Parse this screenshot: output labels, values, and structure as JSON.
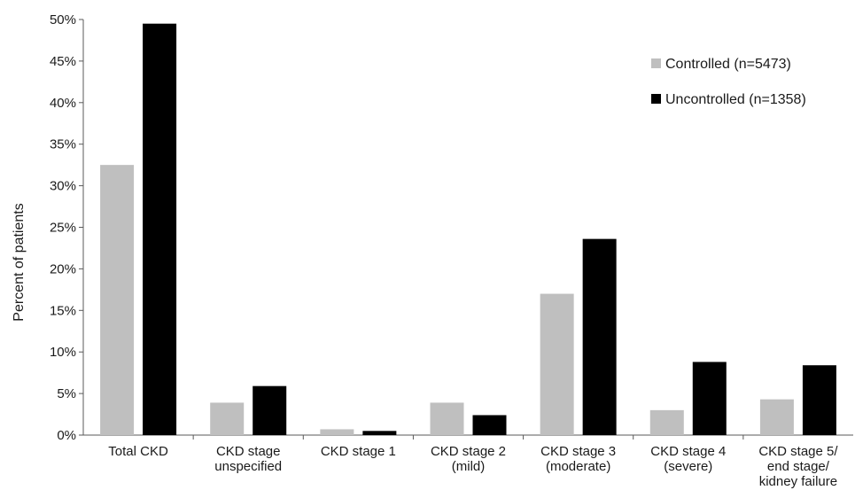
{
  "chart_data": {
    "type": "bar",
    "title": "",
    "xlabel": "",
    "ylabel": "Percent of patients",
    "ylim": [
      0,
      50
    ],
    "yticks": [
      "0%",
      "5%",
      "10%",
      "15%",
      "20%",
      "25%",
      "30%",
      "35%",
      "40%",
      "45%",
      "50%"
    ],
    "grid": false,
    "legend_position": "top-right",
    "categories": [
      [
        "Total CKD"
      ],
      [
        "CKD stage",
        "unspecified"
      ],
      [
        "CKD stage 1"
      ],
      [
        "CKD stage 2",
        "(mild)"
      ],
      [
        "CKD stage 3",
        "(moderate)"
      ],
      [
        "CKD stage 4",
        "(severe)"
      ],
      [
        "CKD stage 5/",
        "end stage/",
        "kidney failure"
      ]
    ],
    "series": [
      {
        "name": "Controlled (n=5473)",
        "color": "#bfbfbf",
        "values": [
          32.5,
          3.9,
          0.7,
          3.9,
          17.0,
          3.0,
          4.3
        ]
      },
      {
        "name": "Uncontrolled (n=1358)",
        "color": "#000000",
        "values": [
          49.5,
          5.9,
          0.5,
          2.4,
          23.6,
          8.8,
          8.4
        ]
      }
    ]
  }
}
